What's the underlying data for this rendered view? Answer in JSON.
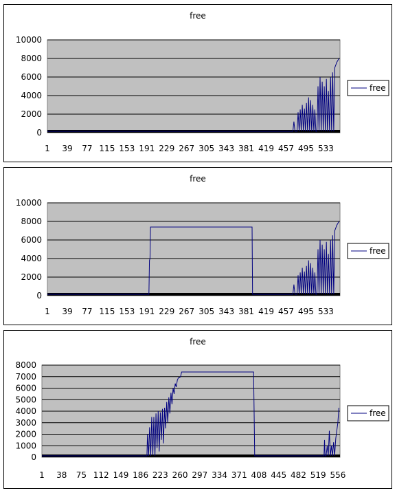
{
  "chart_data": [
    {
      "type": "line",
      "title": "free",
      "legend": {
        "position": "right",
        "entries": [
          "free"
        ]
      },
      "colors": {
        "series": "#000080",
        "plot_bg": "#c0c0c0"
      },
      "grid": true,
      "ylim": [
        0,
        10000
      ],
      "yticks": [
        "0",
        "2000",
        "4000",
        "6000",
        "8000",
        "10000"
      ],
      "xlim": [
        1,
        560
      ],
      "xticks": [
        "1",
        "39",
        "77",
        "115",
        "153",
        "191",
        "229",
        "267",
        "305",
        "343",
        "381",
        "419",
        "457",
        "495",
        "533"
      ],
      "series": [
        {
          "name": "free",
          "x": [
            1,
            470,
            472,
            474,
            474,
            478,
            480,
            482,
            484,
            486,
            488,
            490,
            492,
            494,
            496,
            498,
            500,
            502,
            504,
            506,
            508,
            510,
            512,
            514,
            516,
            518,
            520,
            522,
            524,
            526,
            528,
            530,
            532,
            534,
            536,
            538,
            540,
            542,
            544,
            546,
            548,
            550,
            552,
            554,
            556,
            558
          ],
          "y": [
            0,
            0,
            1200,
            0,
            0,
            0,
            2200,
            0,
            2500,
            0,
            3000,
            0,
            2600,
            0,
            3200,
            0,
            3800,
            0,
            3500,
            0,
            3000,
            0,
            2500,
            0,
            0,
            5000,
            0,
            6000,
            0,
            5500,
            0,
            5000,
            0,
            5800,
            0,
            4500,
            0,
            6000,
            0,
            6500,
            0,
            7000,
            7300,
            7600,
            7800,
            8000
          ]
        }
      ]
    },
    {
      "type": "line",
      "title": "free",
      "legend": {
        "position": "right",
        "entries": [
          "free"
        ]
      },
      "colors": {
        "series": "#000080",
        "plot_bg": "#c0c0c0"
      },
      "grid": true,
      "ylim": [
        0,
        10000
      ],
      "yticks": [
        "0",
        "2000",
        "4000",
        "6000",
        "8000",
        "10000"
      ],
      "xlim": [
        1,
        560
      ],
      "xticks": [
        "1",
        "39",
        "77",
        "115",
        "153",
        "191",
        "229",
        "267",
        "305",
        "343",
        "381",
        "419",
        "457",
        "495",
        "533"
      ],
      "series": [
        {
          "name": "free",
          "x": [
            1,
            195,
            196,
            197,
            198,
            392,
            393,
            470,
            472,
            474,
            478,
            480,
            482,
            484,
            486,
            488,
            490,
            492,
            494,
            496,
            498,
            500,
            502,
            504,
            506,
            508,
            510,
            512,
            514,
            516,
            518,
            520,
            522,
            524,
            526,
            528,
            530,
            532,
            534,
            536,
            538,
            540,
            542,
            544,
            546,
            548,
            550,
            552,
            554,
            556,
            558
          ],
          "y": [
            0,
            0,
            3800,
            4000,
            7400,
            7400,
            0,
            0,
            1200,
            0,
            0,
            2200,
            0,
            2500,
            0,
            3000,
            0,
            2600,
            0,
            3200,
            0,
            3800,
            0,
            3500,
            0,
            3000,
            0,
            2500,
            0,
            0,
            5000,
            0,
            6000,
            0,
            5500,
            0,
            5000,
            0,
            5800,
            0,
            4500,
            0,
            6000,
            0,
            6500,
            0,
            7000,
            7300,
            7600,
            7800,
            8000
          ]
        }
      ]
    },
    {
      "type": "line",
      "title": "free",
      "legend": {
        "position": "right",
        "entries": [
          "free"
        ]
      },
      "colors": {
        "series": "#000080",
        "plot_bg": "#c0c0c0"
      },
      "grid": true,
      "ylim": [
        0,
        8000
      ],
      "yticks": [
        "0",
        "1000",
        "2000",
        "3000",
        "4000",
        "5000",
        "6000",
        "7000",
        "8000"
      ],
      "xlim": [
        1,
        560
      ],
      "xticks": [
        "1",
        "38",
        "75",
        "112",
        "149",
        "186",
        "223",
        "260",
        "297",
        "334",
        "371",
        "408",
        "445",
        "482",
        "519",
        "556"
      ],
      "series": [
        {
          "name": "free",
          "x": [
            1,
            198,
            199,
            201,
            203,
            205,
            207,
            209,
            211,
            213,
            215,
            217,
            219,
            221,
            223,
            225,
            227,
            229,
            231,
            233,
            235,
            237,
            239,
            241,
            243,
            245,
            247,
            249,
            251,
            253,
            255,
            257,
            259,
            261,
            263,
            265,
            398,
            399,
            400,
            530,
            531,
            532,
            534,
            536,
            538,
            540,
            542,
            544,
            546,
            548,
            550,
            552,
            554,
            556,
            558
          ],
          "y": [
            0,
            0,
            2000,
            0,
            2600,
            0,
            3500,
            200,
            3500,
            0,
            3800,
            800,
            4000,
            500,
            3900,
            1500,
            4200,
            1200,
            4300,
            2500,
            4800,
            3000,
            5200,
            3800,
            5600,
            4600,
            6000,
            5500,
            6400,
            6100,
            6700,
            6900,
            6900,
            7000,
            7400,
            7400,
            7400,
            3800,
            0,
            0,
            1500,
            0,
            0,
            1000,
            0,
            2300,
            0,
            1000,
            0,
            1300,
            0,
            1600,
            2300,
            3000,
            4300
          ]
        }
      ]
    }
  ]
}
